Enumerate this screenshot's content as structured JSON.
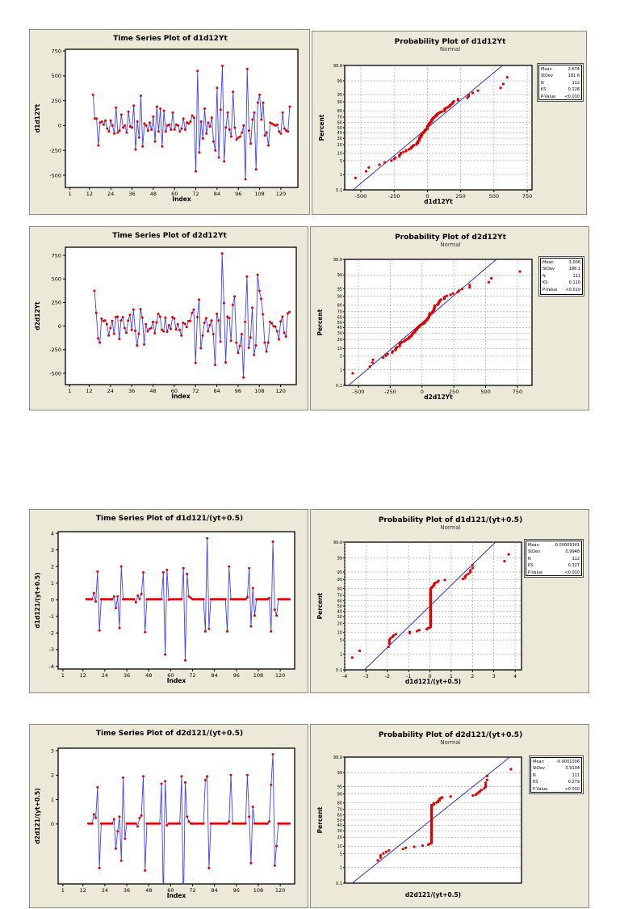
{
  "chart_data": [
    {
      "type": "line",
      "title": "Time Series Plot of d1d12Yt",
      "xlabel": "Index",
      "ylabel": "d1d12Yt",
      "x_start": 14,
      "xticks": [
        1,
        12,
        24,
        36,
        48,
        60,
        72,
        84,
        96,
        108,
        120
      ],
      "yticks": [
        -500,
        -250,
        0,
        250,
        500,
        750
      ],
      "xlim": [
        -1.6,
        129.6
      ],
      "ylim": [
        -622,
        767
      ],
      "colors": {
        "line": "#4040ff",
        "marker": "#e00000"
      },
      "values": [
        310,
        70,
        70,
        -200,
        30,
        40,
        10,
        50,
        -30,
        -60,
        50,
        0,
        -80,
        180,
        -70,
        -50,
        110,
        -20,
        0,
        -70,
        140,
        -10,
        -20,
        200,
        -240,
        40,
        -120,
        300,
        -210,
        20,
        0,
        -50,
        30,
        -40,
        90,
        -160,
        190,
        -60,
        170,
        -210,
        150,
        -60,
        0,
        10,
        -40,
        130,
        -40,
        10,
        0,
        -60,
        -30,
        70,
        -40,
        30,
        20,
        40,
        100,
        80,
        -460,
        550,
        -270,
        40,
        -130,
        170,
        -80,
        30,
        -10,
        80,
        -160,
        -250,
        380,
        -320,
        160,
        600,
        -360,
        -20,
        130,
        -40,
        -110,
        340,
        -20,
        -140,
        -120,
        -110,
        -70,
        0,
        -540,
        570,
        -50,
        -180,
        60,
        130,
        -440,
        230,
        310,
        60,
        230,
        -100,
        -70,
        -200,
        30,
        20,
        10,
        0,
        10,
        -60,
        -80,
        130,
        -30,
        -50,
        -60,
        190
      ]
    },
    {
      "type": "scatter",
      "title": "Probability Plot of d1d12Yt",
      "subtitle": "Normal",
      "xlabel": "d1d12Yt",
      "ylabel": "Percent",
      "source_series": 0,
      "xticks": [
        -500,
        -250,
        0,
        250,
        500,
        750
      ],
      "yticks": [
        0.1,
        1,
        5,
        10,
        20,
        30,
        40,
        50,
        60,
        70,
        80,
        90,
        95,
        99,
        99.9
      ],
      "xlim": [
        -621,
        786
      ],
      "stats": [
        [
          "Mean",
          "2.674"
        ],
        [
          "StDev",
          "181.6"
        ],
        [
          "N",
          "112"
        ],
        [
          "KS",
          "0.128"
        ],
        [
          "P-Value",
          "<0.010"
        ]
      ],
      "mean": 2.674,
      "stdev": 181.6,
      "colors": {
        "line": "#2020e0",
        "marker": "#e00000"
      }
    },
    {
      "type": "line",
      "title": "Time Series Plot of d2d12Yt",
      "xlabel": "Index",
      "ylabel": "d2d12Yt",
      "x_start": 15,
      "xticks": [
        1,
        12,
        24,
        36,
        48,
        60,
        72,
        84,
        96,
        108,
        120
      ],
      "yticks": [
        -500,
        -250,
        0,
        250,
        500,
        750
      ],
      "xlim": [
        -1.4,
        128.8
      ],
      "ylim": [
        -620,
        836
      ],
      "colors": {
        "line": "#4040ff",
        "marker": "#e00000"
      },
      "values": [
        375,
        140,
        -130,
        -175,
        80,
        55,
        60,
        20,
        -100,
        -20,
        55,
        -80,
        95,
        100,
        -135,
        60,
        95,
        -20,
        -70,
        60,
        120,
        -40,
        175,
        -50,
        -205,
        -80,
        180,
        90,
        -195,
        20,
        -55,
        -30,
        -20,
        45,
        -75,
        40,
        130,
        100,
        -40,
        -55,
        90,
        -60,
        10,
        -30,
        95,
        80,
        -35,
        20,
        -40,
        -100,
        35,
        25,
        -10,
        55,
        55,
        140,
        175,
        -390,
        95,
        280,
        -235,
        -100,
        35,
        85,
        -55,
        10,
        60,
        -85,
        -410,
        130,
        60,
        -165,
        770,
        245,
        -385,
        100,
        85,
        -155,
        225,
        315,
        -175,
        -285,
        -210,
        -85,
        -545,
        45,
        525,
        -230,
        -120,
        195,
        -305,
        -205,
        545,
        375,
        290,
        125,
        -175,
        -270,
        -175,
        45,
        30,
        0,
        -5,
        -55,
        -140,
        50,
        100,
        -70,
        -110,
        135,
        150
      ]
    },
    {
      "type": "scatter",
      "title": "Probability Plot of d2d12Yt",
      "subtitle": "Normal",
      "xlabel": "d2d12Yt",
      "ylabel": "Percent",
      "source_series": 2,
      "xticks": [
        -500,
        -250,
        0,
        250,
        500,
        750
      ],
      "yticks": [
        0.1,
        1,
        5,
        10,
        20,
        30,
        40,
        50,
        60,
        70,
        80,
        90,
        95,
        99,
        99.9
      ],
      "xlim": [
        -608,
        865
      ],
      "stats": [
        [
          "Mean",
          "3.006"
        ],
        [
          "StDev",
          "188.1"
        ],
        [
          "N",
          "111"
        ],
        [
          "KS",
          "0.110"
        ],
        [
          "P-Value",
          "<0.010"
        ]
      ],
      "mean": 3.006,
      "stdev": 188.1,
      "colors": {
        "line": "#2020e0",
        "marker": "#e00000"
      }
    },
    {
      "type": "line",
      "title": "Time Series Plot of d1d121/(yt+0.5)",
      "xlabel": "Index",
      "ylabel": "d1d121/(yt+0.5)",
      "x_start": 14,
      "xticks": [
        1,
        12,
        24,
        36,
        48,
        60,
        72,
        84,
        96,
        108,
        120
      ],
      "yticks": [
        -4,
        -3,
        -2,
        -1,
        0,
        1,
        2,
        3,
        4
      ],
      "xlim": [
        -1.6,
        127.9
      ],
      "ylim": [
        -4.17,
        4.1
      ],
      "colors": {
        "line": "#4040ff",
        "marker": "#e00000"
      },
      "values": [
        0.03,
        0.03,
        0.03,
        0.03,
        0.4,
        -0.1,
        1.7,
        -1.85,
        0.03,
        0.03,
        0.03,
        0.03,
        0.03,
        0.03,
        0.03,
        0.2,
        -0.5,
        0.2,
        -1.7,
        2.0,
        0.03,
        0.03,
        0.03,
        0.03,
        0.03,
        0.03,
        0.03,
        -0.15,
        0.25,
        0.05,
        0.35,
        1.65,
        -1.95,
        0.03,
        0.03,
        0.03,
        0.03,
        0.03,
        0.03,
        0.03,
        0.03,
        0.03,
        1.65,
        -3.3,
        1.8,
        0,
        0.03,
        0.03,
        0.03,
        0.03,
        0.03,
        0.03,
        0.03,
        1.9,
        -3.65,
        1.55,
        0.2,
        0.12,
        0.03,
        0.03,
        0.03,
        0.03,
        0.03,
        0.03,
        0.03,
        -1.9,
        3.7,
        -1.75,
        0.03,
        0.03,
        0.03,
        0.03,
        0.03,
        0.03,
        0.03,
        0.03,
        0.03,
        -1.9,
        2.0,
        0.03,
        0.03,
        0.03,
        0.03,
        0.03,
        0.03,
        0.03,
        0.03,
        0.03,
        0.15,
        1.9,
        -1.6,
        0.7,
        -0.95,
        0.03,
        0.03,
        0.03,
        0.03,
        0.03,
        0.03,
        0.03,
        0.1,
        -1.9,
        3.5,
        -0.6,
        -0.95,
        0.03,
        0.03,
        0.03,
        0.03,
        0.03,
        0.03,
        0.03
      ]
    },
    {
      "type": "scatter",
      "title": "Probability Plot of d1d121/(yt+0.5)",
      "subtitle": "Normal",
      "xlabel": "d1d121/(yt+0.5)",
      "ylabel": "Percent",
      "source_series": 4,
      "xticks": [
        -4,
        -3,
        -2,
        -1,
        0,
        1,
        2,
        3,
        4
      ],
      "yticks": [
        0.1,
        1,
        5,
        10,
        20,
        30,
        40,
        50,
        60,
        70,
        80,
        90,
        95,
        99,
        99.9
      ],
      "xlim": [
        -4.0,
        4.3
      ],
      "stats": [
        [
          "Mean",
          "-0.00009341"
        ],
        [
          "StDev",
          "0.9948"
        ],
        [
          "N",
          "112"
        ],
        [
          "KS",
          "0.327"
        ],
        [
          "P-Value",
          "<0.010"
        ]
      ],
      "mean": -9.341e-05,
      "stdev": 0.9948,
      "colors": {
        "line": "#2020e0",
        "marker": "#e00000"
      }
    },
    {
      "type": "line",
      "title": "Time Series Plot of d2d121/(yt+0.5)",
      "xlabel": "Index",
      "ylabel": "d2d121/(yt+0.5)",
      "x_start": 15,
      "xticks": [
        1,
        12,
        24,
        36,
        48,
        60,
        72,
        84,
        96,
        108,
        120
      ],
      "yticks": [
        0,
        1,
        2,
        3
      ],
      "xlim": [
        -1.6,
        127.9
      ],
      "ylim": [
        -2.45,
        3.1
      ],
      "colors": {
        "line": "#4040ff",
        "marker": "#e00000"
      },
      "values": [
        0.02,
        0.02,
        0.02,
        0.4,
        0.25,
        1.5,
        -1.8,
        0.02,
        0.02,
        0.02,
        0.02,
        0.02,
        0.02,
        0.02,
        0.2,
        -1.0,
        -0.3,
        0.3,
        -1.5,
        1.9,
        -0.6,
        0.02,
        0.02,
        0.02,
        0.02,
        0.02,
        0.02,
        -0.1,
        0.25,
        0.35,
        1.95,
        -1.9,
        0.02,
        0.02,
        0.02,
        0.02,
        0.02,
        0.02,
        0.02,
        0.02,
        1.65,
        -3.2,
        1.75,
        -0.05,
        0.02,
        0.02,
        0.02,
        0.02,
        0.02,
        0.02,
        0.02,
        1.95,
        -3.5,
        1.7,
        0.3,
        0.1,
        0.02,
        0.02,
        0.02,
        0.02,
        0.02,
        0.02,
        0.02,
        0.02,
        1.8,
        1.95,
        -1.8,
        0.02,
        0.02,
        0.02,
        0.02,
        0.02,
        0.02,
        0.02,
        0.02,
        0.02,
        0.02,
        0.1,
        2.0,
        0.02,
        0.02,
        0.02,
        0.02,
        0.02,
        0.02,
        0.02,
        0.02,
        2.0,
        0.3,
        -1.6,
        0.7,
        0.02,
        0.02,
        0.02,
        0.02,
        0.02,
        0.02,
        0.02,
        0.02,
        0.1,
        1.6,
        2.85,
        -1.7,
        -0.9,
        0.02,
        0.02,
        0.02,
        0.02,
        0.02,
        0.02,
        0.02
      ]
    },
    {
      "type": "scatter",
      "title": "Probability Plot of d2d121/(yt+0.5)",
      "subtitle": "Normal",
      "xlabel": "d2d121/(yt+0.5)",
      "ylabel": "Percent",
      "source_series": 6,
      "xticks": [],
      "yticks": [
        0.1,
        1,
        5,
        10,
        20,
        30,
        40,
        50,
        60,
        70,
        80,
        90,
        95,
        99,
        99.9
      ],
      "xlim": [
        -3.08,
        3.23
      ],
      "stats": [
        [
          "Mean",
          "-0.0001006"
        ],
        [
          "StDev",
          "0.9104"
        ],
        [
          "N",
          "111"
        ],
        [
          "KS",
          "0.279"
        ],
        [
          "P-Value",
          "<0.010"
        ]
      ],
      "mean": -0.0001006,
      "stdev": 0.9104,
      "colors": {
        "line": "#2020e0",
        "marker": "#e00000"
      }
    }
  ]
}
